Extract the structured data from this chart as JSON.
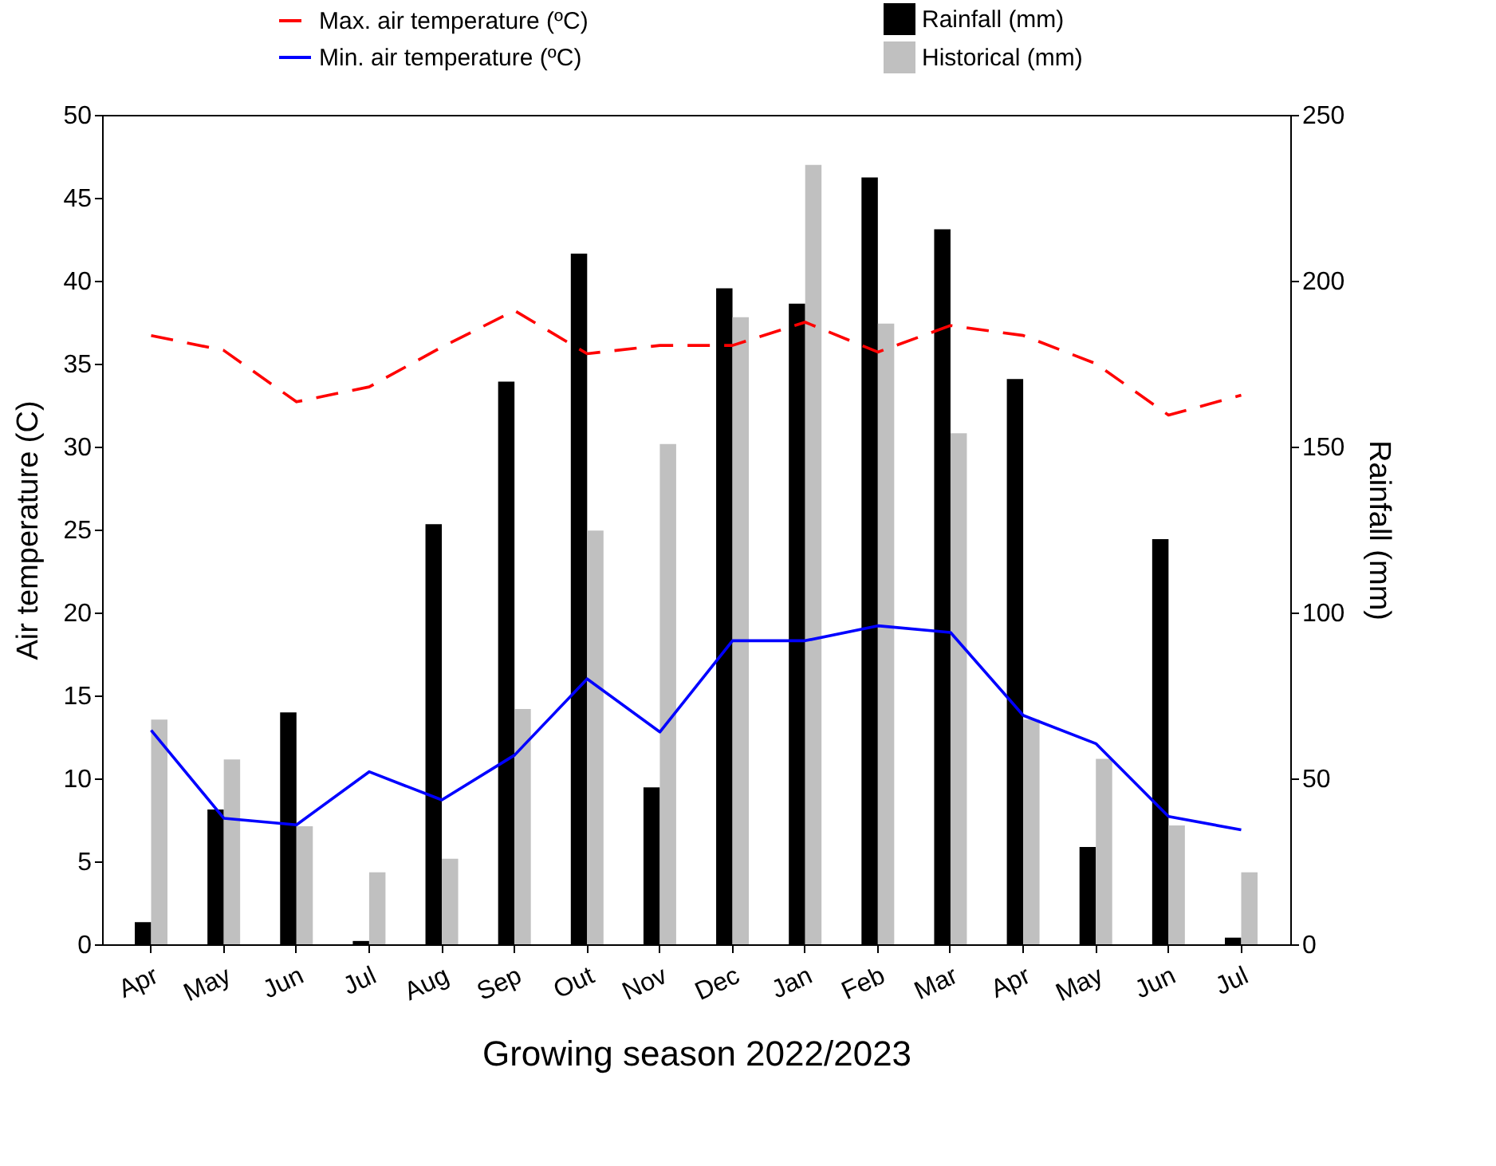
{
  "chart_data": {
    "type": "bar",
    "xlabel": "Growing season 2022/2023",
    "ylabel": "Air temperature (C)",
    "y2label": "Rainfall (mm)",
    "categories": [
      "Apr",
      "May",
      "Jun",
      "Jul",
      "Aug",
      "Sep",
      "Out",
      "Nov",
      "Dec",
      "Jan",
      "Feb",
      "Mar",
      "Apr",
      "May",
      "Jun",
      "Jul"
    ],
    "series": [
      {
        "name": "Max. air temperature (ºC)",
        "type": "line",
        "line_style": "dashed",
        "color": "#ff0000",
        "values": [
          36.7,
          35.8,
          32.7,
          33.6,
          36.0,
          38.2,
          35.6,
          36.1,
          36.1,
          37.5,
          35.7,
          37.3,
          36.7,
          35.0,
          31.9,
          33.1
        ]
      },
      {
        "name": "Min. air temperature (ºC)",
        "type": "line",
        "line_style": "solid",
        "color": "#0000ff",
        "values": [
          12.9,
          7.6,
          7.2,
          10.4,
          8.7,
          11.4,
          16.0,
          12.8,
          18.3,
          18.3,
          19.2,
          18.8,
          13.8,
          12.1,
          7.7,
          6.9
        ]
      },
      {
        "name": "Rainfall (mm)",
        "axis": "y2",
        "color": "#000000",
        "values": [
          6.7,
          40.6,
          69.9,
          1,
          126.6,
          169.6,
          208.2,
          47.3,
          197.7,
          193.1,
          231.1,
          215.5,
          170.4,
          29.3,
          122.1,
          2.0
        ]
      },
      {
        "name": "Historical (mm)",
        "axis": "y2",
        "color": "#c0c0c0",
        "values": [
          67.7,
          55.7,
          35.6,
          21.7,
          25.8,
          70.9,
          124.7,
          150.8,
          189.0,
          234.9,
          187.1,
          154.0,
          67.7,
          55.9,
          35.8,
          21.7
        ]
      }
    ],
    "ylim": [
      0,
      50
    ],
    "yticks": [
      0,
      5,
      10,
      15,
      20,
      25,
      30,
      35,
      40,
      45,
      50
    ],
    "y2lim": [
      0,
      250
    ],
    "y2ticks": [
      0,
      50,
      100,
      150,
      200,
      250
    ],
    "legend": "top",
    "grid": false,
    "marker": "none"
  }
}
